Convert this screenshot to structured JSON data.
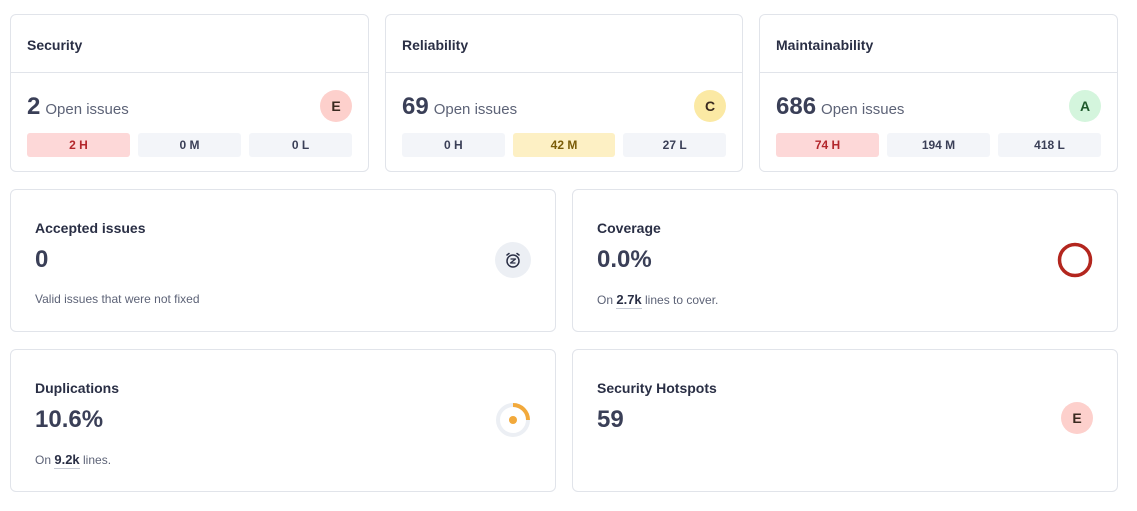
{
  "security": {
    "title": "Security",
    "count": "2",
    "count_label": "Open issues",
    "rating": "E",
    "rating_color": "#fdd0cc",
    "high": "2 H",
    "medium": "0 M",
    "low": "0 L"
  },
  "reliability": {
    "title": "Reliability",
    "count": "69",
    "count_label": "Open issues",
    "rating": "C",
    "rating_color": "#fbe9a4",
    "high": "0 H",
    "medium": "42 M",
    "low": "27 L"
  },
  "maintainability": {
    "title": "Maintainability",
    "count": "686",
    "count_label": "Open issues",
    "rating": "A",
    "rating_color": "#d4f5dd",
    "high": "74 H",
    "medium": "194 M",
    "low": "418 L"
  },
  "accepted": {
    "title": "Accepted issues",
    "value": "0",
    "description": "Valid issues that were not fixed",
    "icon": "snooze-clock-icon"
  },
  "coverage": {
    "title": "Coverage",
    "value": "0.0%",
    "prefix": "On",
    "lines": "2.7k",
    "suffix": "lines to cover.",
    "ring_color": "#b3261e",
    "coverage_fraction": 0.0
  },
  "duplications": {
    "title": "Duplications",
    "value": "10.6%",
    "prefix": "On",
    "lines": "9.2k",
    "suffix": "lines.",
    "ring_color": "#f2a93b",
    "duplication_fraction": 0.106
  },
  "hotspots": {
    "title": "Security Hotspots",
    "value": "59",
    "rating": "E"
  }
}
